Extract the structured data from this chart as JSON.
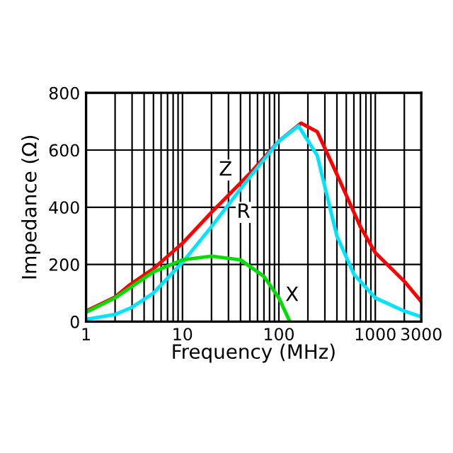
{
  "chart_data": {
    "type": "line",
    "xlabel": "Frequency (MHz)",
    "ylabel": "Impedance (Ω)",
    "log": "x",
    "grid": true,
    "legend": false,
    "marker": "none",
    "line_style": "solid",
    "xlim": [
      1,
      3000
    ],
    "ylim": [
      0,
      800
    ],
    "xticks": [
      1,
      10,
      100,
      1000,
      3000
    ],
    "yticks": [
      0,
      200,
      400,
      600,
      800
    ],
    "series": [
      {
        "color": "#ff0000",
        "x": [
          1,
          2,
          2.75,
          5,
          10,
          20,
          50,
          100,
          170,
          250,
          400,
          700,
          1000,
          2000,
          3000
        ],
        "values": [
          37,
          86,
          125,
          185,
          274,
          382,
          518,
          631,
          694,
          664,
          515,
          332,
          241,
          141,
          70
        ]
      },
      {
        "color": "#00e5ff",
        "x": [
          1,
          2,
          3,
          5,
          10,
          20,
          50,
          100,
          160,
          250,
          400,
          600,
          1000,
          2000,
          3000
        ],
        "values": [
          8,
          25,
          50,
          100,
          207,
          332,
          506,
          631,
          684,
          581,
          299,
          166,
          83,
          37,
          17
        ]
      },
      {
        "color": "#00dd00",
        "x": [
          1,
          2,
          5,
          10,
          20,
          40,
          70,
          100,
          130
        ],
        "values": [
          33,
          83,
          174,
          216,
          229,
          216,
          158,
          83,
          0
        ]
      }
    ],
    "annotations": [
      {
        "text": "Z",
        "x": 28,
        "y": 530
      },
      {
        "text": "R",
        "x": 43,
        "y": 382
      },
      {
        "text": "X",
        "x": 137,
        "y": 91
      }
    ]
  }
}
